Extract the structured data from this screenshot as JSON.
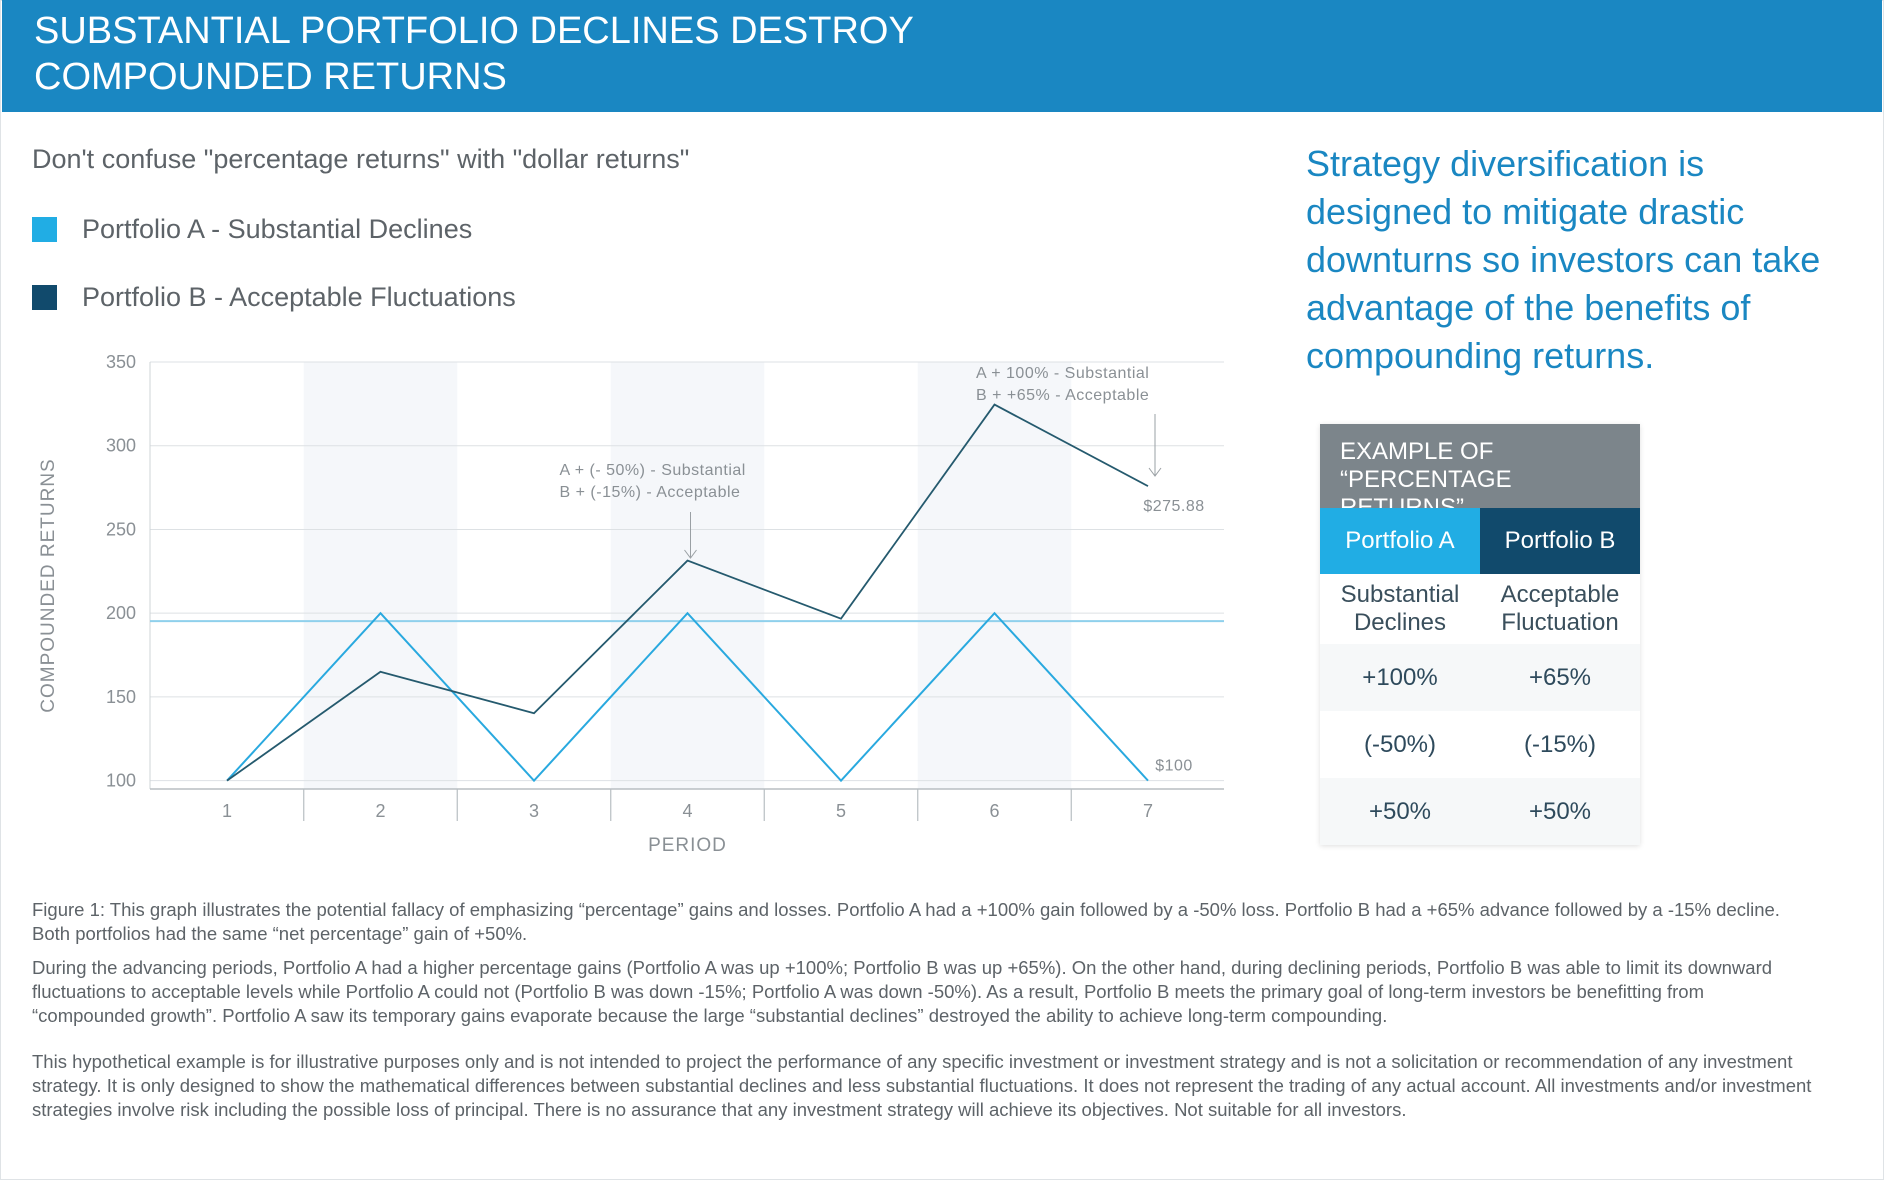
{
  "header": {
    "title": "SUBSTANTIAL PORTFOLIO DECLINES DESTROY\nCOMPOUNDED RETURNS"
  },
  "subtitle": "Don't confuse \"percentage returns\" with \"dollar returns\"",
  "legend": [
    {
      "label": "Portfolio A - Substantial Declines",
      "color": "#21ade4"
    },
    {
      "label": "Portfolio B - Acceptable Fluctuations",
      "color": "#114a6c"
    }
  ],
  "chart_data": {
    "type": "line",
    "xlabel": "PERIOD",
    "ylabel": "COMPOUNDED RETURNS",
    "x": [
      1,
      2,
      3,
      4,
      5,
      6,
      7
    ],
    "y_ticks": [
      100,
      150,
      200,
      250,
      300,
      350
    ],
    "ylim": [
      95,
      350
    ],
    "grid": "horizontal",
    "series": [
      {
        "name": "Portfolio A - Substantial Declines",
        "color": "#29a9df",
        "values": [
          100,
          200,
          100,
          200,
          100,
          200,
          100
        ]
      },
      {
        "name": "Portfolio B - Acceptable Fluctuations",
        "color": "#255a6e",
        "values": [
          100,
          165,
          140.25,
          231.41,
          196.7,
          324.56,
          275.88
        ]
      }
    ],
    "reference_line": {
      "y": 200,
      "color": "#8fd0ec"
    },
    "annotations": [
      {
        "x": 4,
        "lines": [
          "A + (- 50%) - Substantial",
          "B + (-15%) - Acceptable"
        ],
        "arrow": true
      },
      {
        "x": 7,
        "lines": [
          "A + 100% - Substantial",
          "B + +65% - Acceptable"
        ],
        "arrow": true
      }
    ],
    "end_labels": [
      {
        "x": 7,
        "y": 275.88,
        "text": "$275.88"
      },
      {
        "x": 7,
        "y": 100,
        "text": "$100"
      }
    ]
  },
  "side_text": "Strategy diversification is designed to mitigate drastic downturns so investors can take advantage of the benefits of compounding returns.",
  "table": {
    "title": "EXAMPLE OF\n“PERCENTAGE RETURNS”",
    "headers": [
      "Portfolio A",
      "Portfolio B"
    ],
    "descriptions": [
      "Substantial\nDeclines",
      "Acceptable\nFluctuation"
    ],
    "rows": [
      [
        "+100%",
        "+65%"
      ],
      [
        "(-50%)",
        "(-15%)"
      ],
      [
        "+50%",
        "+50%"
      ]
    ],
    "colors": {
      "title_bg": "#7c858b",
      "portfolio_a": "#21ade4",
      "portfolio_b": "#114a6c"
    }
  },
  "notes": [
    "Figure 1: This graph illustrates the potential fallacy of emphasizing “percentage” gains and losses. Portfolio A had a +100% gain followed by a -50% loss. Portfolio B had a +65% advance followed by a -15% decline. Both portfolios had the same “net percentage” gain of +50%.",
    "During the advancing periods, Portfolio A had a higher percentage gains (Portfolio A was up +100%; Portfolio B was up +65%). On the other hand, during declining periods, Portfolio B was able to limit its downward fluctuations to acceptable levels while Portfolio A could not (Portfolio B was down -15%; Portfolio A was down -50%). As a result, Portfolio B meets the primary goal of long-term investors be benefitting from “compounded growth”. Portfolio A saw its temporary gains evaporate because the large “substantial declines” destroyed the ability to achieve long-term compounding.",
    "This hypothetical example is for illustrative purposes only and is not intended to project the performance of any specific investment or investment strategy and is not a solicitation or recommendation of any investment strategy. It is only designed to show the mathematical differences between substantial declines and less substantial fluctuations. It does not represent the trading of any actual account. All investments and/or investment strategies involve risk including the possible loss of principal. There is no assurance that any investment strategy will achieve its objectives. Not suitable for all investors."
  ]
}
